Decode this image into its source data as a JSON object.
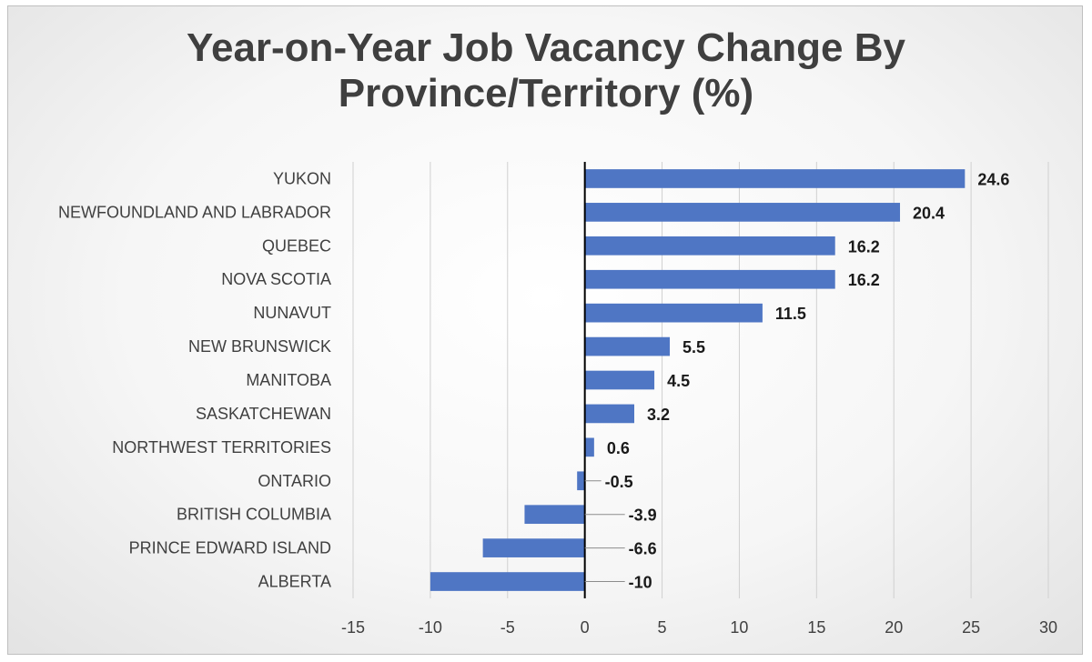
{
  "chart_data": {
    "type": "bar",
    "orientation": "horizontal",
    "title": [
      "Year-on-Year Job Vacancy Change By",
      "Province/Territory (%)"
    ],
    "categories": [
      "YUKON",
      "NEWFOUNDLAND AND LABRADOR",
      "QUEBEC",
      "NOVA SCOTIA",
      "NUNAVUT",
      "NEW BRUNSWICK",
      "MANITOBA",
      "SASKATCHEWAN",
      "NORTHWEST TERRITORIES",
      "ONTARIO",
      "BRITISH COLUMBIA",
      "PRINCE EDWARD ISLAND",
      "ALBERTA"
    ],
    "values": [
      24.6,
      20.4,
      16.2,
      16.2,
      11.5,
      5.5,
      4.5,
      3.2,
      0.6,
      -0.5,
      -3.9,
      -6.6,
      -10
    ],
    "data_labels": [
      "24.6",
      "20.4",
      "16.2",
      "16.2",
      "11.5",
      "5.5",
      "4.5",
      "3.2",
      "0.6",
      "-0.5",
      "-3.9",
      "-6.6",
      "-10"
    ],
    "xlim": [
      -15,
      30
    ],
    "xticks": [
      -15,
      -10,
      -5,
      0,
      5,
      10,
      15,
      20,
      25,
      30
    ],
    "xtick_labels": [
      "-15",
      "-10",
      "-5",
      "0",
      "5",
      "10",
      "15",
      "20",
      "25",
      "30"
    ],
    "grid": true,
    "legend": "none",
    "colors": {
      "bar": "#4f76c4",
      "grid": "#d0d0d0",
      "axis": "#000000"
    }
  }
}
